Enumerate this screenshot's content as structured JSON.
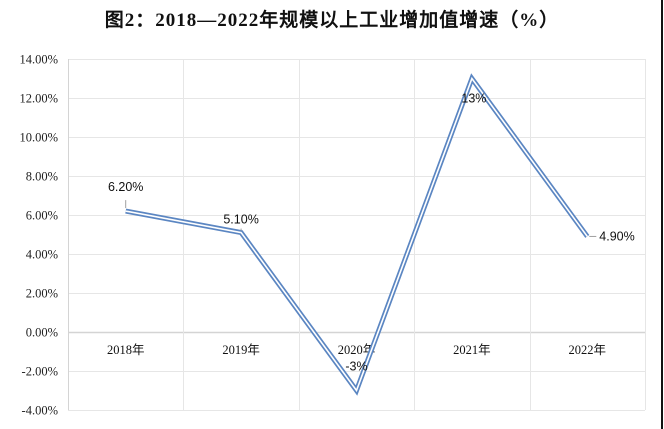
{
  "title": "图2：2018—2022年规模以上工业增加值增速（%）",
  "colors": {
    "series_line": "#5b86c2",
    "gridline": "#e6e6e6",
    "axis": "#d4d4d4",
    "leader": "#a0a0a0"
  },
  "chart_data": {
    "type": "line",
    "title": "图2：2018—2022年规模以上工业增加值增速（%）",
    "xlabel": "",
    "ylabel": "",
    "categories": [
      "2018年",
      "2019年",
      "2020年",
      "2021年",
      "2022年"
    ],
    "series": [
      {
        "name": "规模以上工业增加值增速",
        "values": [
          6.2,
          5.1,
          -3,
          13,
          4.9
        ],
        "data_labels": [
          "6.20%",
          "5.10%",
          "-3%",
          "13%",
          "4.90%"
        ]
      }
    ],
    "ylim": [
      -4,
      14
    ],
    "y_ticks": [
      "14.00%",
      "12.00%",
      "10.00%",
      "8.00%",
      "6.00%",
      "4.00%",
      "2.00%",
      "0.00%",
      "-2.00%",
      "-4.00%"
    ],
    "grid": true,
    "legend": null,
    "line_style": "double"
  }
}
